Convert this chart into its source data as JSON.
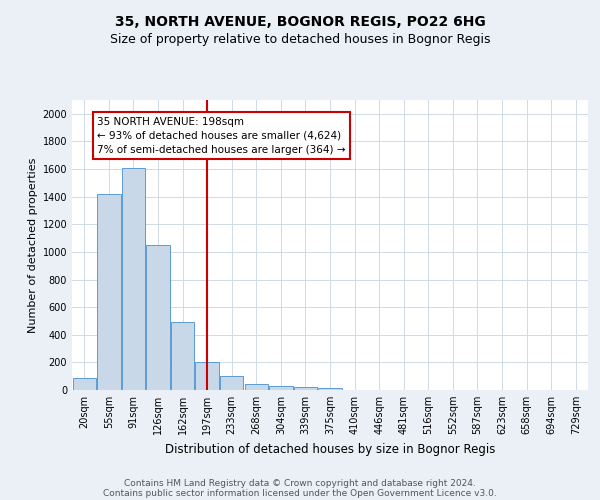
{
  "title": "35, NORTH AVENUE, BOGNOR REGIS, PO22 6HG",
  "subtitle": "Size of property relative to detached houses in Bognor Regis",
  "xlabel": "Distribution of detached houses by size in Bognor Regis",
  "ylabel": "Number of detached properties",
  "categories": [
    "20sqm",
    "55sqm",
    "91sqm",
    "126sqm",
    "162sqm",
    "197sqm",
    "233sqm",
    "268sqm",
    "304sqm",
    "339sqm",
    "375sqm",
    "410sqm",
    "446sqm",
    "481sqm",
    "516sqm",
    "552sqm",
    "587sqm",
    "623sqm",
    "658sqm",
    "694sqm",
    "729sqm"
  ],
  "values": [
    85,
    1420,
    1610,
    1050,
    490,
    205,
    105,
    42,
    27,
    20,
    18,
    0,
    0,
    0,
    0,
    0,
    0,
    0,
    0,
    0,
    0
  ],
  "bar_color": "#c8d8e8",
  "bar_edge_color": "#5b9bd5",
  "reference_line_index": 5,
  "reference_line_color": "#cc0000",
  "annotation_line1": "35 NORTH AVENUE: 198sqm",
  "annotation_line2": "← 93% of detached houses are smaller (4,624)",
  "annotation_line3": "7% of semi-detached houses are larger (364) →",
  "annotation_box_color": "#ffffff",
  "annotation_box_edge_color": "#cc0000",
  "ylim": [
    0,
    2100
  ],
  "yticks": [
    0,
    200,
    400,
    600,
    800,
    1000,
    1200,
    1400,
    1600,
    1800,
    2000
  ],
  "background_color": "#eaf0f6",
  "plot_bg_color": "#ffffff",
  "footer_line1": "Contains HM Land Registry data © Crown copyright and database right 2024.",
  "footer_line2": "Contains public sector information licensed under the Open Government Licence v3.0.",
  "title_fontsize": 10,
  "subtitle_fontsize": 9,
  "tick_fontsize": 7,
  "ylabel_fontsize": 8,
  "xlabel_fontsize": 8.5,
  "annotation_fontsize": 7.5,
  "footer_fontsize": 6.5
}
